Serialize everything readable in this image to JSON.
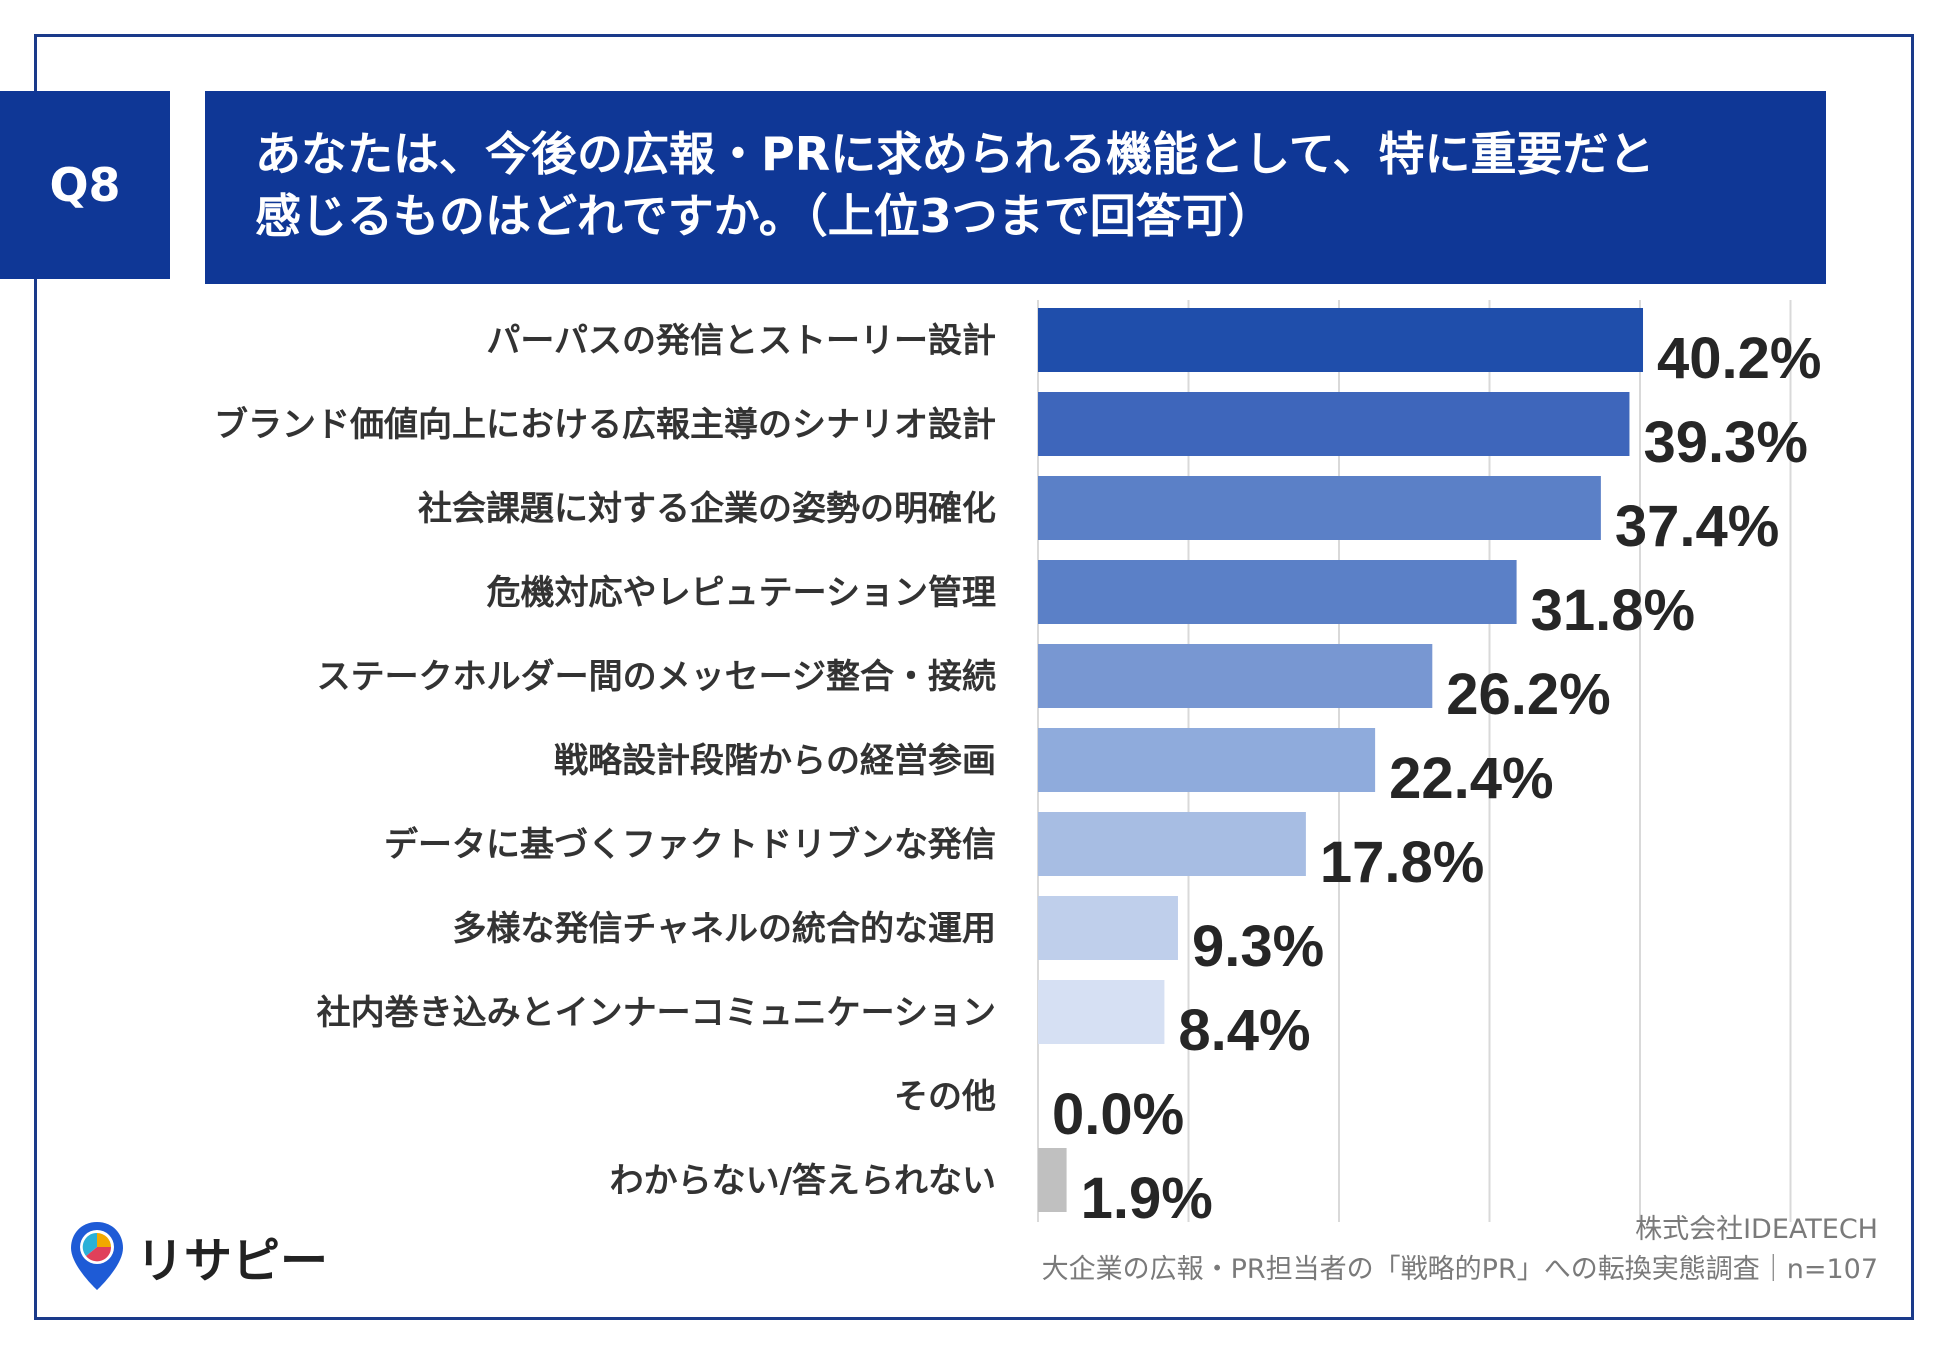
{
  "question": {
    "label": "Q8",
    "title_line1": "あなたは、今後の広報・PRに求められる機能として、特に重要だと",
    "title_line2": "感じるものはどれですか。（上位3つまで回答可）"
  },
  "chart_data": {
    "type": "bar",
    "orientation": "horizontal",
    "title": "あなたは、今後の広報・PRに求められる機能として、特に重要だと感じるものはどれですか。（上位3つまで回答可）",
    "categories": [
      "パーパスの発信とストーリー設計",
      "ブランド価値向上における広報主導のシナリオ設計",
      "社会課題に対する企業の姿勢の明確化",
      "危機対応やレピュテーション管理",
      "ステークホルダー間のメッセージ整合・接続",
      "戦略設計段階からの経営参画",
      "データに基づくファクトドリブンな発信",
      "多様な発信チャネルの統合的な運用",
      "社内巻き込みとインナーコミュニケーション",
      "その他",
      "わからない/答えられない"
    ],
    "values": [
      40.2,
      39.3,
      37.4,
      31.8,
      26.2,
      22.4,
      17.8,
      9.3,
      8.4,
      0.0,
      1.9
    ],
    "value_labels": [
      "40.2%",
      "39.3%",
      "37.4%",
      "31.8%",
      "26.2%",
      "22.4%",
      "17.8%",
      "9.3%",
      "8.4%",
      "0.0%",
      "1.9%"
    ],
    "colors": [
      "#1f4eab",
      "#3e66bb",
      "#5b80c7",
      "#5b80c7",
      "#7897d2",
      "#8fabdc",
      "#a7bde3",
      "#bfcfeb",
      "#d6e0f3",
      "#c0c0c0",
      "#c0c0c0"
    ],
    "xlim": [
      0,
      50
    ],
    "grid": true,
    "xlabel": "",
    "ylabel": ""
  },
  "logo": {
    "text": "リサピー",
    "icon": "location-pin-icon"
  },
  "footer": {
    "company": "株式会社IDEATECH",
    "survey": "大企業の広報・PR担当者の「戦略的PR」への転換実態調査｜n=107"
  }
}
